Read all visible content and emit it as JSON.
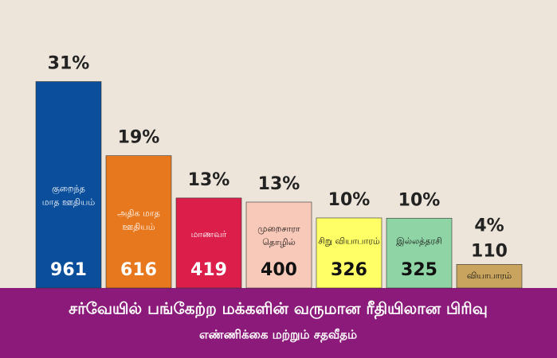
{
  "chart_data": {
    "type": "bar",
    "title": "சர்வேயில் பங்கேற்ற மக்களின் வருமான ரீதியிலான பிரிவு",
    "subtitle": "எண்ணிக்கை மற்றும் சதவீதம்",
    "categories": [
      [
        "குறைந்த",
        "மாத ஊதியம்"
      ],
      [
        "அதிக மாத",
        "ஊதியம்"
      ],
      [
        "மாணவர்"
      ],
      [
        "முறைசாரா",
        "தொழில்"
      ],
      [
        "சிறு வியாபாரம்"
      ],
      [
        "இல்லத்தரசி"
      ],
      [
        "வியாபாரம்"
      ]
    ],
    "values": [
      961,
      616,
      419,
      400,
      326,
      325,
      110
    ],
    "share_labels": [
      "31%",
      "19%",
      "13%",
      "13%",
      "10%",
      "10%",
      "4%"
    ],
    "colors": [
      "#0b4f9c",
      "#e8781e",
      "#dc1f4a",
      "#f8c8b8",
      "#ffff66",
      "#8fd4a5",
      "#c9a45e"
    ],
    "ylim": [
      0,
      1000
    ]
  }
}
